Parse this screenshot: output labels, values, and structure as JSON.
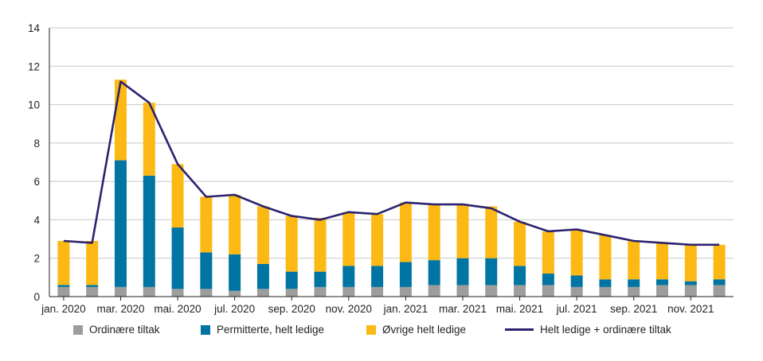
{
  "chart_data": {
    "type": "bar",
    "stacked": true,
    "categories": [
      "jan. 2020",
      "feb. 2020",
      "mar. 2020",
      "apr. 2020",
      "mai. 2020",
      "jun. 2020",
      "jul. 2020",
      "aug. 2020",
      "sep. 2020",
      "okt. 2020",
      "nov. 2020",
      "des. 2020",
      "jan. 2021",
      "feb. 2021",
      "mar. 2021",
      "apr. 2021",
      "mai. 2021",
      "jun. 2021",
      "jul. 2021",
      "aug. 2021",
      "sep. 2021",
      "okt. 2021",
      "nov. 2021",
      "des. 2021"
    ],
    "x_tick_labels": [
      "jan. 2020",
      "mar. 2020",
      "mai. 2020",
      "jul. 2020",
      "sep. 2020",
      "nov. 2020",
      "jan. 2021",
      "mar. 2021",
      "mai. 2021",
      "jul. 2021",
      "sep. 2021",
      "nov. 2021"
    ],
    "series": [
      {
        "name": "Ordinære tiltak",
        "kind": "bar",
        "color": "#9d9d9c",
        "values": [
          0.5,
          0.5,
          0.5,
          0.5,
          0.4,
          0.4,
          0.3,
          0.4,
          0.4,
          0.5,
          0.5,
          0.5,
          0.5,
          0.6,
          0.6,
          0.6,
          0.6,
          0.6,
          0.5,
          0.5,
          0.5,
          0.6,
          0.6,
          0.6
        ]
      },
      {
        "name": "Permitterte, helt ledige",
        "kind": "bar",
        "color": "#0075a3",
        "values": [
          0.1,
          0.1,
          6.6,
          5.8,
          3.2,
          1.9,
          1.9,
          1.3,
          0.9,
          0.8,
          1.1,
          1.1,
          1.3,
          1.3,
          1.4,
          1.4,
          1.0,
          0.6,
          0.6,
          0.4,
          0.4,
          0.3,
          0.2,
          0.3
        ]
      },
      {
        "name": "Øvrige helt ledige",
        "kind": "bar",
        "color": "#fdb913",
        "values": [
          2.3,
          2.3,
          4.2,
          3.8,
          3.3,
          2.9,
          3.1,
          3.0,
          2.9,
          2.8,
          2.8,
          2.7,
          3.1,
          2.9,
          2.8,
          2.7,
          2.3,
          2.2,
          2.4,
          2.3,
          2.0,
          1.9,
          1.9,
          1.8
        ]
      },
      {
        "name": "Helt ledige + ordinære tiltak",
        "kind": "line",
        "color": "#2b2370",
        "values": [
          2.9,
          2.8,
          11.2,
          10.1,
          6.9,
          5.2,
          5.3,
          4.7,
          4.2,
          4.0,
          4.4,
          4.3,
          4.9,
          4.8,
          4.8,
          4.6,
          3.9,
          3.4,
          3.5,
          3.2,
          2.9,
          2.8,
          2.7,
          2.7
        ]
      }
    ],
    "y_ticks": [
      "0",
      "2",
      "4",
      "6",
      "8",
      "10",
      "12",
      "14"
    ],
    "ylim": [
      0,
      14
    ],
    "title": "",
    "xlabel": "",
    "ylabel": "",
    "grid": true,
    "legend_position": "bottom"
  },
  "legend": {
    "items": [
      {
        "label": "Ordinære tiltak",
        "color": "#9d9d9c"
      },
      {
        "label": "Permitterte, helt ledige",
        "color": "#0075a3"
      },
      {
        "label": "Øvrige helt ledige",
        "color": "#fdb913"
      },
      {
        "label": "Helt ledige + ordinære tiltak",
        "color": "#2b2370"
      }
    ]
  }
}
